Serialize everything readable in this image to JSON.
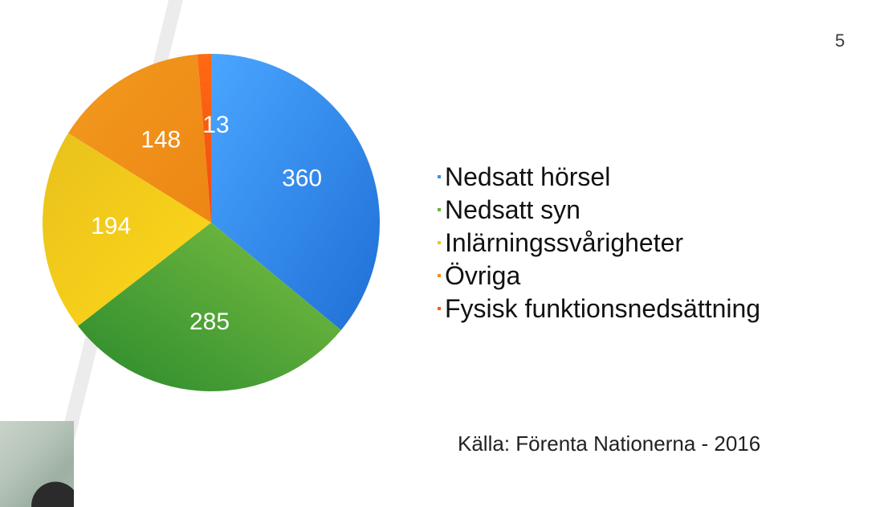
{
  "slide": {
    "page_number": "5",
    "source_text": "Källa: Förenta Nationerna - 2016"
  },
  "colors": {
    "hearing": "#3d8fe6",
    "vision": "#6bb33a",
    "learning": "#f0c41a",
    "other": "#f08c1a",
    "physical": "#ff5a10"
  },
  "chart_data": {
    "type": "pie",
    "title": "",
    "slices": [
      {
        "label": "Nedsatt hörsel",
        "value": 360,
        "display": "360",
        "color_key": "hearing"
      },
      {
        "label": "Nedsatt syn",
        "value": 285,
        "display": "285",
        "color_key": "vision"
      },
      {
        "label": "Inlärningssvårigheter",
        "value": 194,
        "display": "194",
        "color_key": "learning"
      },
      {
        "label": "Övriga",
        "value": 148,
        "display": "148",
        "color_key": "other"
      },
      {
        "label": "Fysisk funktionsnedsättning",
        "value": 13,
        "display": "13",
        "color_key": "physical"
      }
    ],
    "legend_position": "right",
    "data_labels": true
  },
  "legend": {
    "items": [
      {
        "label": "Nedsatt hörsel",
        "color_key": "hearing"
      },
      {
        "label": "Nedsatt syn",
        "color_key": "vision"
      },
      {
        "label": "Inlärningssvårigheter",
        "color_key": "learning"
      },
      {
        "label": "Övriga",
        "color_key": "other"
      },
      {
        "label": "Fysisk funktionsnedsättning",
        "color_key": "physical"
      }
    ]
  },
  "webcam": {
    "icon": "webcam-thumbnail"
  }
}
